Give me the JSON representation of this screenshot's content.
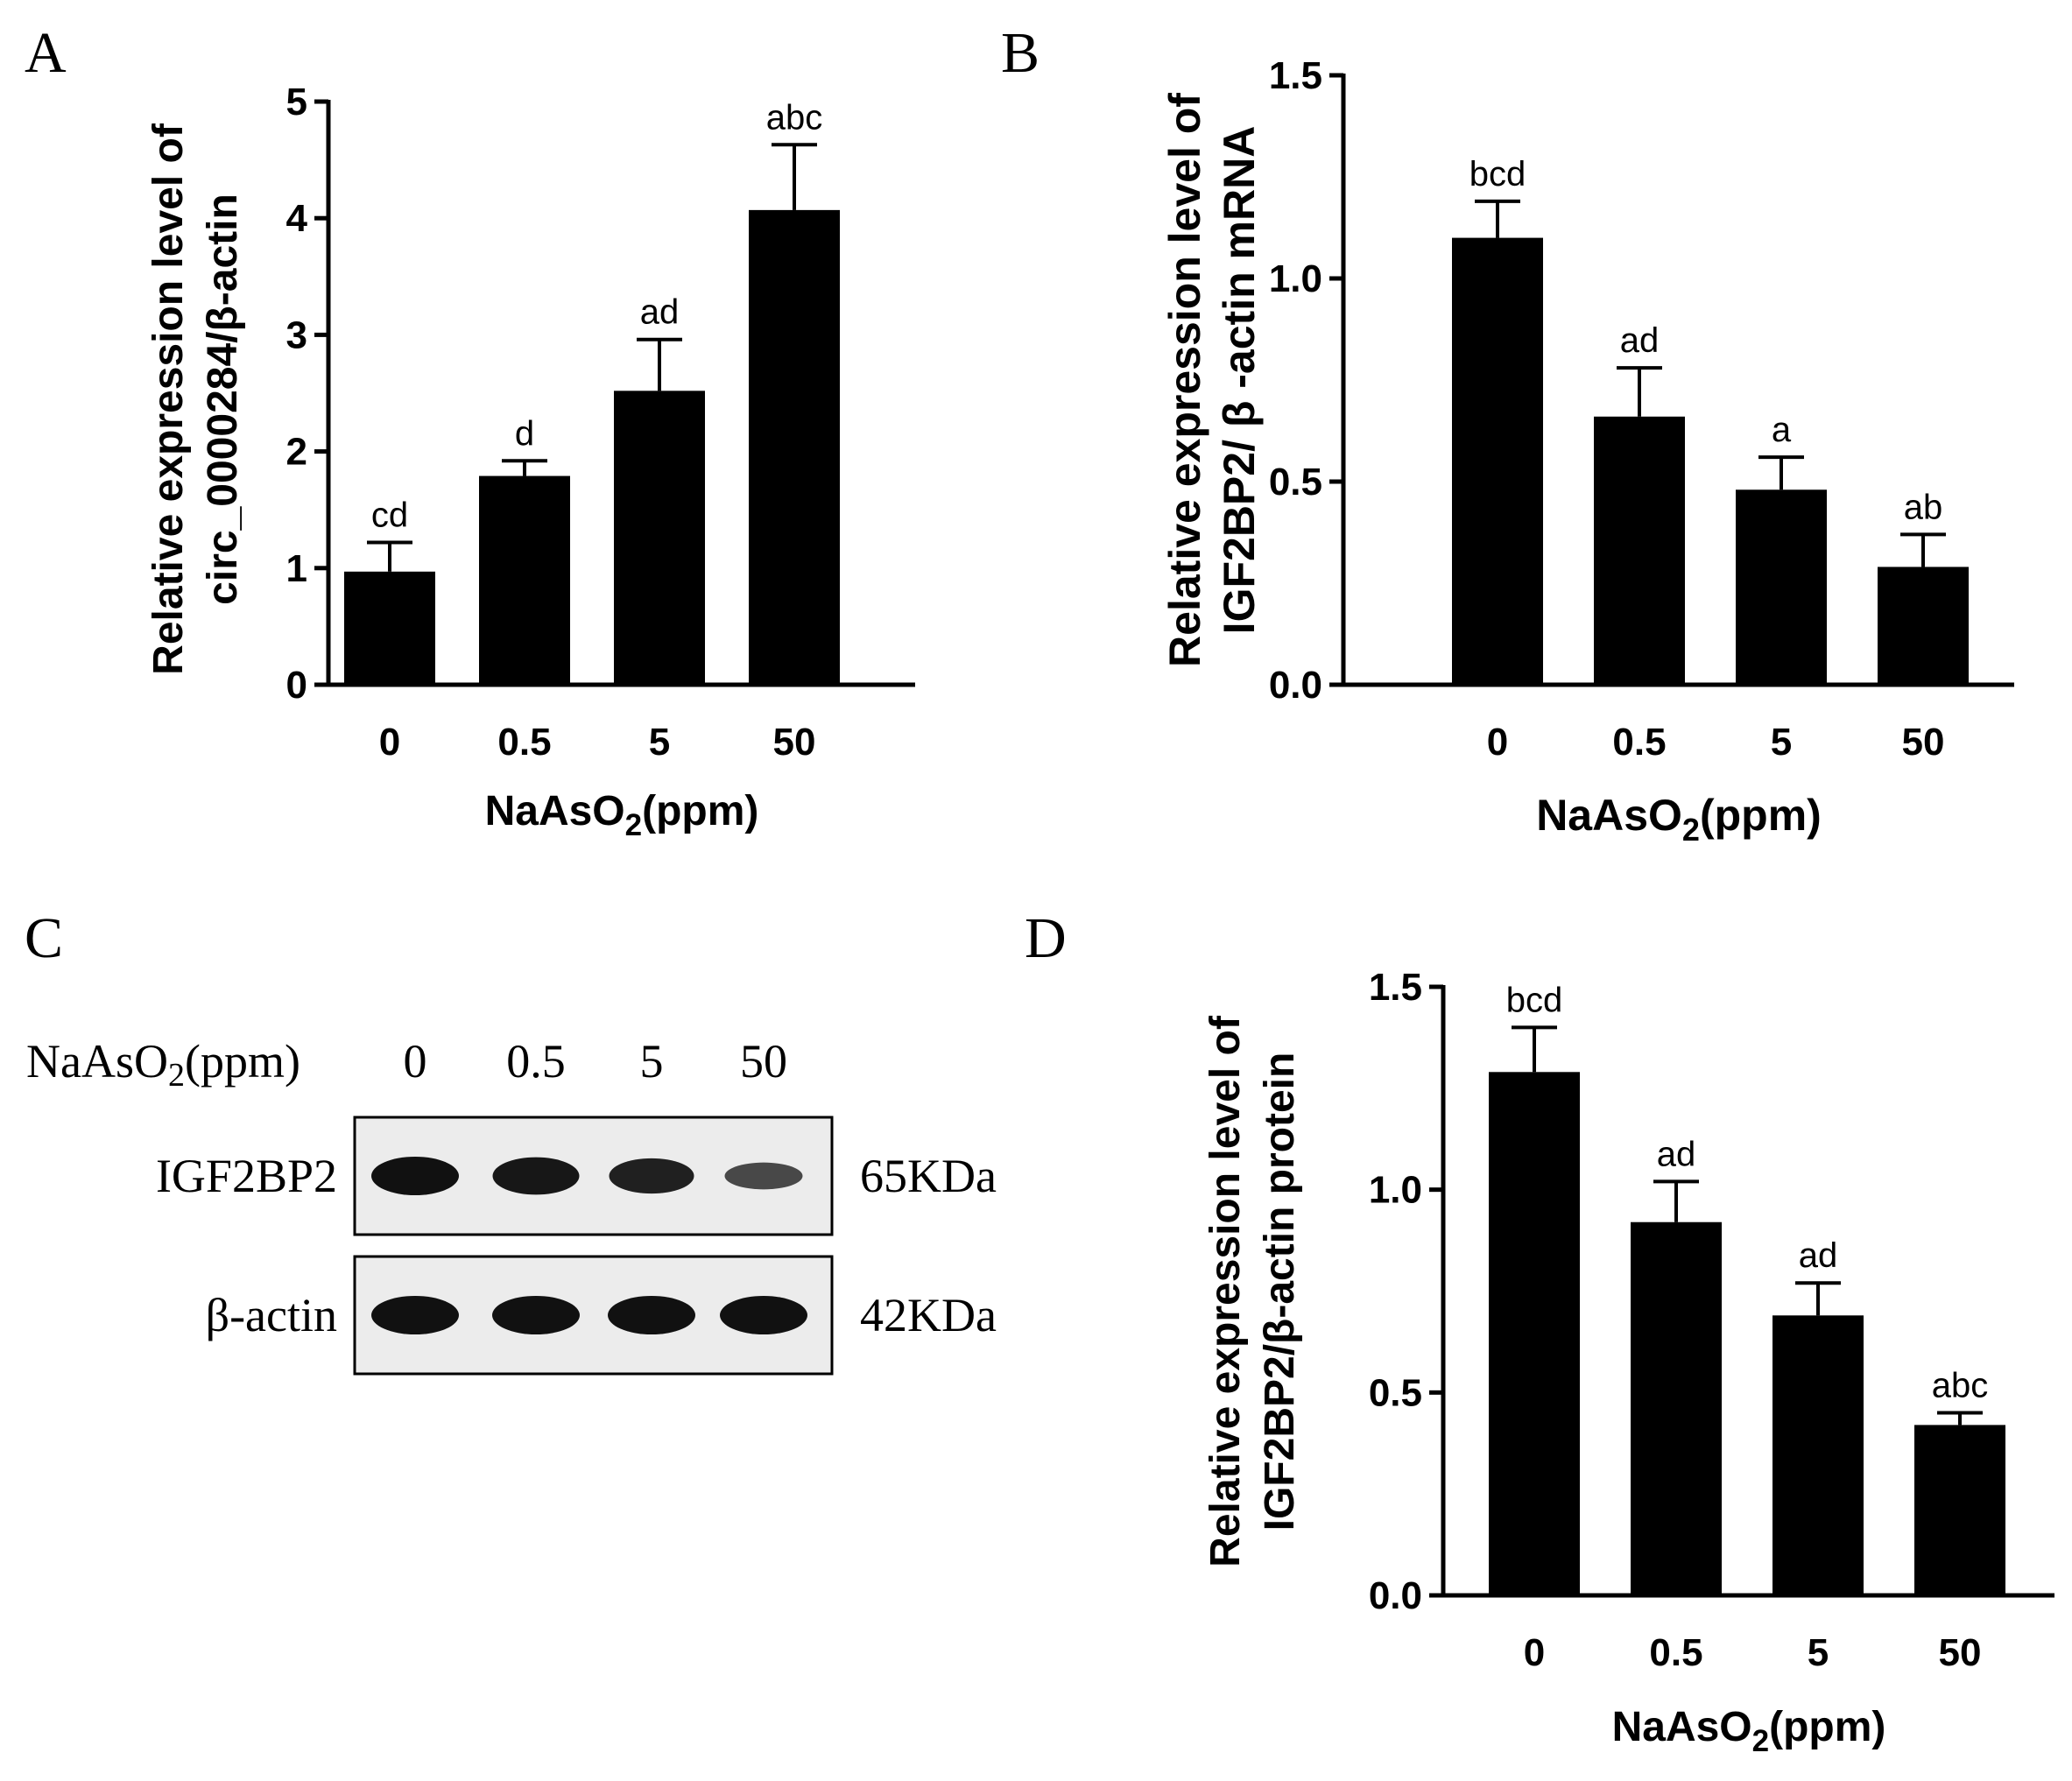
{
  "chart_data": [
    {
      "panel": "A",
      "type": "bar",
      "categories": [
        "0",
        "0.5",
        "5",
        "50"
      ],
      "values": [
        0.97,
        1.79,
        2.52,
        4.07
      ],
      "error": [
        0.25,
        0.13,
        0.44,
        0.56
      ],
      "significance": [
        "cd",
        "d",
        "ad",
        "abc"
      ],
      "xlabel": "NaAsO",
      "xlabel_sub": "2",
      "xlabel_tail": "(ppm)",
      "ylabel_lines": [
        "Relative expression level of",
        "circ_0000284/β-actin"
      ],
      "ylim": [
        0,
        5
      ],
      "yticks": [
        0,
        1,
        2,
        3,
        4,
        5
      ],
      "ytick_labels": [
        "0",
        "1",
        "2",
        "3",
        "4",
        "5"
      ]
    },
    {
      "panel": "B",
      "type": "bar",
      "categories": [
        "0",
        "0.5",
        "5",
        "50"
      ],
      "values": [
        1.1,
        0.66,
        0.48,
        0.29
      ],
      "error": [
        0.09,
        0.12,
        0.08,
        0.08
      ],
      "significance": [
        "bcd",
        "ad",
        "a",
        "ab"
      ],
      "xlabel": "NaAsO",
      "xlabel_sub": "2",
      "xlabel_tail": "(ppm)",
      "ylabel_lines": [
        "Relative expression level of",
        "IGF2BP2/ β -actin mRNA"
      ],
      "ylim": [
        0,
        1.5
      ],
      "yticks": [
        0,
        0.5,
        1.0,
        1.5
      ],
      "ytick_labels": [
        "0.0",
        "0.5",
        "1.0",
        "1.5"
      ]
    },
    {
      "panel": "D",
      "type": "bar",
      "categories": [
        "0",
        "0.5",
        "5",
        "50"
      ],
      "values": [
        1.29,
        0.92,
        0.69,
        0.42
      ],
      "error": [
        0.11,
        0.1,
        0.08,
        0.03
      ],
      "significance": [
        "bcd",
        "ad",
        "ad",
        "abc"
      ],
      "xlabel": "NaAsO",
      "xlabel_sub": "2",
      "xlabel_tail": "(ppm)",
      "ylabel_lines": [
        "Relative expression level of",
        "IGF2BP2/β-actin protein"
      ],
      "ylim": [
        0,
        1.5
      ],
      "yticks": [
        0,
        0.5,
        1.0,
        1.5
      ],
      "ytick_labels": [
        "0.0",
        "0.5",
        "1.0",
        "1.5"
      ]
    }
  ],
  "panel_labels": {
    "a": "A",
    "b": "B",
    "c": "C",
    "d": "D"
  },
  "blot": {
    "treatment_label": "NaAsO",
    "treatment_sub": "2",
    "treatment_tail": "(ppm)",
    "lanes": [
      "0",
      "0.5",
      "5",
      "50"
    ],
    "rows": [
      {
        "protein": "IGF2BP2",
        "size": "65KDa",
        "band_intensity": [
          1.0,
          0.95,
          0.85,
          0.45
        ]
      },
      {
        "protein": "β-actin",
        "size": "42KDa",
        "band_intensity": [
          1.0,
          1.0,
          1.0,
          1.0
        ]
      }
    ]
  },
  "colors": {
    "bar": "#000000",
    "background": "#ffffff",
    "blot_bg": "#ececec",
    "band": "#111111"
  }
}
